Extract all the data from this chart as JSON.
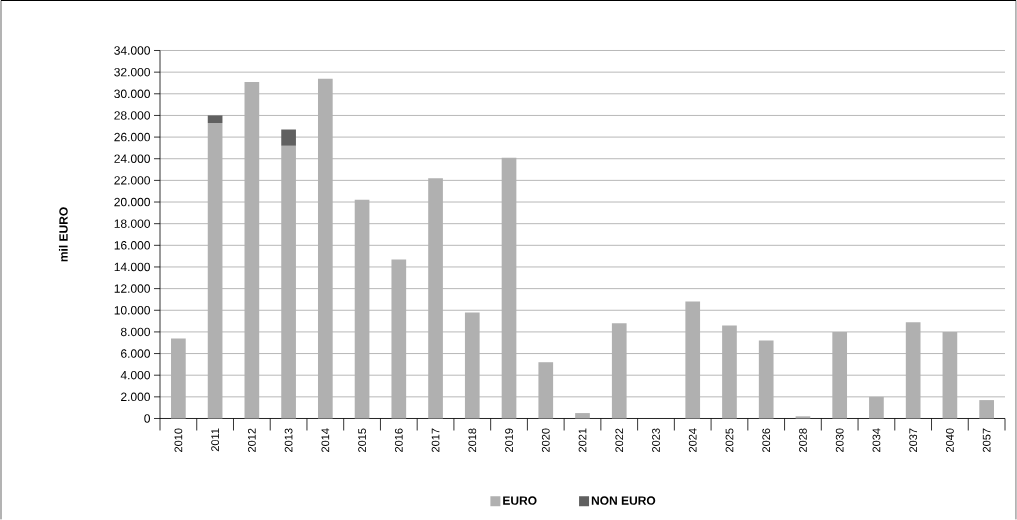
{
  "chart_data": {
    "type": "bar",
    "stacked": true,
    "ylabel": "mil EURO",
    "categories": [
      "2010",
      "2011",
      "2012",
      "2013",
      "2014",
      "2015",
      "2016",
      "2017",
      "2018",
      "2019",
      "2020",
      "2021",
      "2022",
      "2023",
      "2024",
      "2025",
      "2026",
      "2028",
      "2030",
      "2034",
      "2037",
      "2040",
      "2057"
    ],
    "series": [
      {
        "name": "EURO",
        "color": "#b0b0b0",
        "values": [
          7400,
          27300,
          31100,
          25200,
          31400,
          20200,
          14700,
          22200,
          9800,
          24100,
          5200,
          500,
          8800,
          0,
          10800,
          8600,
          7200,
          200,
          8000,
          2000,
          8900,
          8000,
          1700
        ]
      },
      {
        "name": "NON EURO",
        "color": "#606060",
        "values": [
          null,
          700,
          null,
          1500,
          null,
          null,
          null,
          null,
          null,
          null,
          null,
          null,
          null,
          null,
          null,
          null,
          null,
          null,
          null,
          null,
          null,
          null,
          null
        ]
      }
    ],
    "ylim": [
      0,
      34000
    ],
    "yticks": [
      {
        "value": 0,
        "label": "0"
      },
      {
        "value": 2000,
        "label": "2.000"
      },
      {
        "value": 4000,
        "label": "4.000"
      },
      {
        "value": 6000,
        "label": "6.000"
      },
      {
        "value": 8000,
        "label": "8.000"
      },
      {
        "value": 10000,
        "label": "10.000"
      },
      {
        "value": 12000,
        "label": "12.000"
      },
      {
        "value": 14000,
        "label": "14.000"
      },
      {
        "value": 16000,
        "label": "16.000"
      },
      {
        "value": 18000,
        "label": "18.000"
      },
      {
        "value": 20000,
        "label": "20.000"
      },
      {
        "value": 22000,
        "label": "22.000"
      },
      {
        "value": 24000,
        "label": "24.000"
      },
      {
        "value": 26000,
        "label": "26.000"
      },
      {
        "value": 28000,
        "label": "28.000"
      },
      {
        "value": 30000,
        "label": "30.000"
      },
      {
        "value": 32000,
        "label": "32.000"
      },
      {
        "value": 34000,
        "label": "34.000"
      }
    ],
    "grid": "y",
    "legend": "bottom"
  }
}
